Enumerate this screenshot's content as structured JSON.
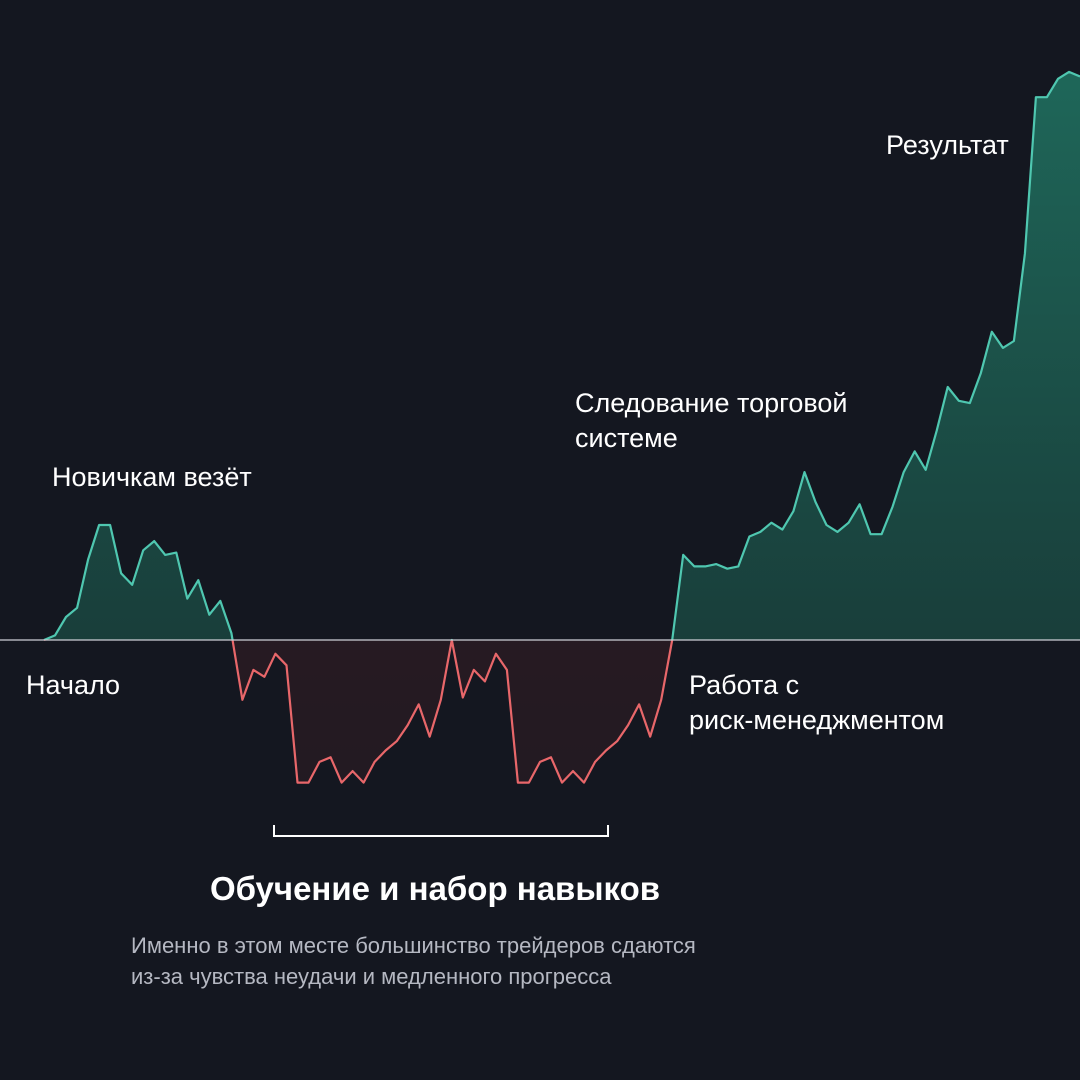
{
  "chart_data": {
    "type": "area",
    "baseline": 0,
    "colors": {
      "background": "#141720",
      "positive": "#4fc7b0",
      "negative": "#e8676a",
      "baseline": "#c9ccd3",
      "bracket": "#ffffff"
    },
    "values": [
      0,
      2,
      10,
      14,
      35,
      50,
      50,
      29,
      24,
      39,
      43,
      37,
      38,
      18,
      26,
      11,
      17,
      3,
      -26,
      -13,
      -16,
      -6,
      -11,
      -62,
      -62,
      -53,
      -51,
      -62,
      -57,
      -62,
      -53,
      -48,
      -44,
      -37,
      -28,
      -42,
      -26,
      0,
      -25,
      -13,
      -18,
      -6,
      -13,
      -62,
      -62,
      -53,
      -51,
      -62,
      -57,
      -62,
      -53,
      -48,
      -44,
      -37,
      -28,
      -42,
      -26,
      0,
      37,
      32,
      32,
      33,
      31,
      32,
      45,
      47,
      51,
      48,
      56,
      73,
      60,
      50,
      47,
      51,
      59,
      46,
      46,
      58,
      73,
      82,
      74,
      91,
      110,
      104,
      103,
      116,
      134,
      127,
      130,
      168,
      236,
      236,
      244,
      247,
      245
    ]
  },
  "annotations": {
    "start": "Начало",
    "beginners_luck": "Новичкам везёт",
    "system_line1": "Следование торговой",
    "system_line2": "системе",
    "risk_line1": "Работа с",
    "risk_line2": "риск-менеджментом",
    "result": "Результат"
  },
  "title": "Обучение и набор навыков",
  "subtitle_line1": "Именно в этом месте большинство трейдеров сдаются",
  "subtitle_line2": "из-за чувства неудачи и медленного прогресса"
}
